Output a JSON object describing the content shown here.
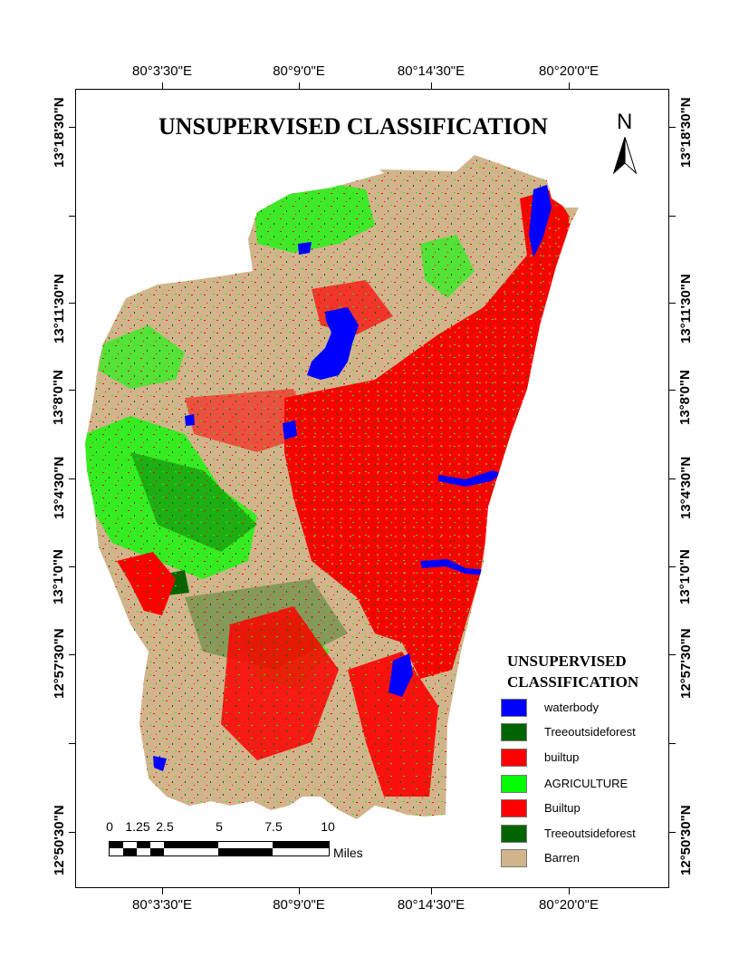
{
  "map": {
    "title": "UNSUPERVISED CLASSIFICATION",
    "north_label": "N",
    "longitude_labels": [
      "80°3'30\"E",
      "80°9'0\"E",
      "80°14'30\"E",
      "80°20'0\"E"
    ],
    "latitude_labels": [
      "13°18'30\"N",
      "13°11'30\"N",
      "13°8'0\"N",
      "13°4'30\"N",
      "13°1'0\"N",
      "12°57'30\"N",
      "12°50'30\"N"
    ],
    "latitude_labels_left": [
      "13°18'30\"N",
      "13°11'30\"N",
      "13°8'0\"N",
      "13°4'30\"N",
      "13°1'0\"N",
      "12°57'30\"N",
      "12°50'30\"N"
    ]
  },
  "legend": {
    "title_line1": "UNSUPERVISED",
    "title_line2": "CLASSIFICATION",
    "items": [
      {
        "label": "waterbody",
        "color": "#0000ff"
      },
      {
        "label": "Treeoutsideforest",
        "color": "#006400"
      },
      {
        "label": "builtup",
        "color": "#ff0000"
      },
      {
        "label": "AGRICULTURE",
        "color": "#00ff00"
      },
      {
        "label": "Builtup",
        "color": "#ff0000"
      },
      {
        "label": "Treeoutsideforest",
        "color": "#006400"
      },
      {
        "label": "Barren",
        "color": "#d2b48c"
      }
    ]
  },
  "scale_bar": {
    "ticks": [
      "0",
      "1.25",
      "2.5",
      "5",
      "7.5",
      "10"
    ],
    "unit": "Miles"
  },
  "colors": {
    "barren": "#d2b48c",
    "builtup": "#ff0000",
    "agriculture": "#00ff00",
    "tree": "#006400",
    "water": "#0000ff"
  }
}
